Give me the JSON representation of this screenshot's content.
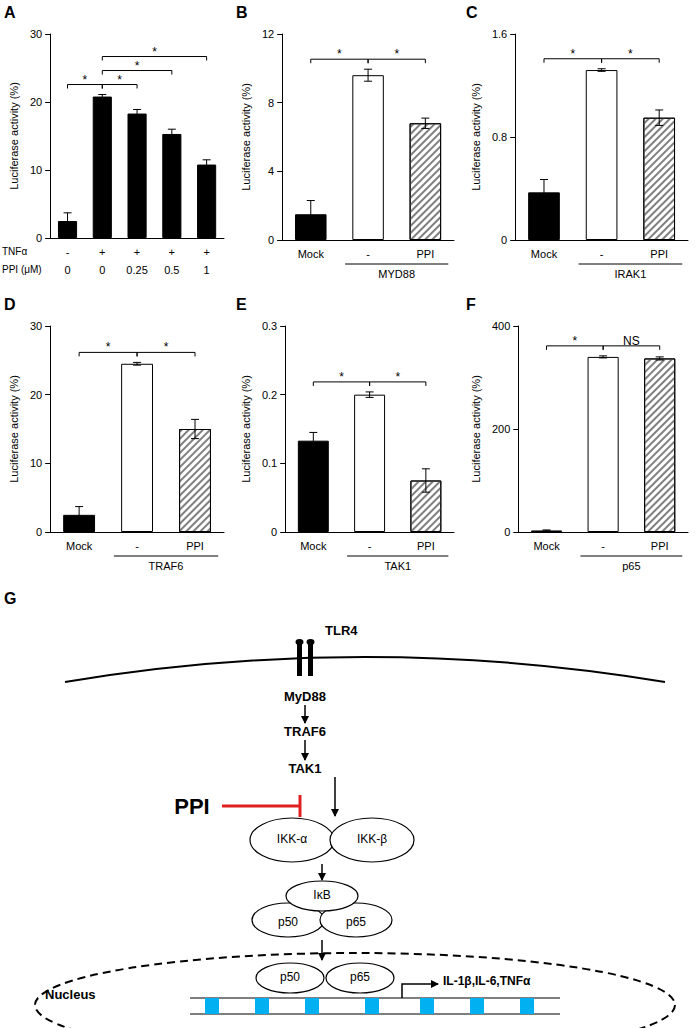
{
  "chart_data": [
    {
      "type": "bar",
      "label": "A",
      "y_label": "Luciferase activity (%)",
      "category_rows": [
        {
          "name": "TNFα",
          "categories": [
            "-",
            "+",
            "+",
            "+",
            "+"
          ]
        },
        {
          "name": "PPI (μM)",
          "categories": [
            "0",
            "0",
            "0.25",
            "0.5",
            "1"
          ]
        }
      ],
      "values": [
        2.5,
        20.8,
        18.3,
        15.3,
        10.8
      ],
      "errors": [
        1.2,
        0.3,
        0.6,
        0.7,
        0.7
      ],
      "colors": [
        "#000000",
        "#000000",
        "#000000",
        "#000000",
        "#000000"
      ],
      "ylim": [
        0,
        30
      ],
      "yticks": [
        0,
        10,
        20,
        30
      ],
      "grid": false,
      "significance": [
        {
          "from": 0,
          "to": 1,
          "label": "*"
        },
        {
          "from": 1,
          "to": 2,
          "label": "*"
        },
        {
          "from": 1,
          "to": 3,
          "label": "*"
        },
        {
          "from": 1,
          "to": 4,
          "label": "*"
        }
      ]
    },
    {
      "type": "bar",
      "label": "B",
      "y_label": "Luciferase activity (%)",
      "categories": [
        "Mock",
        "-",
        "PPI"
      ],
      "group": {
        "label": "MYD88",
        "from": 1,
        "to": 2
      },
      "values": [
        1.5,
        9.6,
        6.8
      ],
      "errors": [
        0.8,
        0.35,
        0.3
      ],
      "colors": [
        "#000000",
        "#ffffff",
        "#808080"
      ],
      "ylim": [
        0,
        12
      ],
      "yticks": [
        0,
        4,
        8,
        12
      ],
      "grid": false,
      "significance": [
        {
          "from": 0,
          "to": 1,
          "label": "*"
        },
        {
          "from": 1,
          "to": 2,
          "label": "*"
        }
      ]
    },
    {
      "type": "bar",
      "label": "C",
      "y_label": "Luciferase activity (%)",
      "categories": [
        "Mock",
        "-",
        "PPI"
      ],
      "group": {
        "label": "IRAK1",
        "from": 1,
        "to": 2
      },
      "values": [
        0.37,
        1.32,
        0.95
      ],
      "errors": [
        0.1,
        0.01,
        0.06
      ],
      "colors": [
        "#000000",
        "#ffffff",
        "#808080"
      ],
      "ylim": [
        0,
        1.6
      ],
      "yticks": [
        0,
        0.8,
        1.6
      ],
      "grid": false,
      "significance": [
        {
          "from": 0,
          "to": 1,
          "label": "*"
        },
        {
          "from": 1,
          "to": 2,
          "label": "*"
        }
      ]
    },
    {
      "type": "bar",
      "label": "D",
      "y_label": "Luciferase activity (%)",
      "categories": [
        "Mock",
        "-",
        "PPI"
      ],
      "group": {
        "label": "TRAF6",
        "from": 1,
        "to": 2
      },
      "values": [
        2.5,
        24.5,
        15.0
      ],
      "errors": [
        1.2,
        0.2,
        1.4
      ],
      "colors": [
        "#000000",
        "#ffffff",
        "#808080"
      ],
      "ylim": [
        0,
        30
      ],
      "yticks": [
        0,
        10,
        20,
        30
      ],
      "grid": false,
      "significance": [
        {
          "from": 0,
          "to": 1,
          "label": "*"
        },
        {
          "from": 1,
          "to": 2,
          "label": "*"
        }
      ]
    },
    {
      "type": "bar",
      "label": "E",
      "y_label": "Luciferase activity (%)",
      "categories": [
        "Mock",
        "-",
        "PPI"
      ],
      "group": {
        "label": "TAK1",
        "from": 1,
        "to": 2
      },
      "values": [
        0.133,
        0.2,
        0.075
      ],
      "errors": [
        0.012,
        0.004,
        0.017
      ],
      "colors": [
        "#000000",
        "#ffffff",
        "#808080"
      ],
      "ylim": [
        0,
        0.3
      ],
      "yticks": [
        0,
        0.1,
        0.2,
        0.3
      ],
      "grid": false,
      "significance": [
        {
          "from": 0,
          "to": 1,
          "label": "*"
        },
        {
          "from": 1,
          "to": 2,
          "label": "*"
        }
      ]
    },
    {
      "type": "bar",
      "label": "F",
      "y_label": "Luciferase activity (%)",
      "categories": [
        "Mock",
        "-",
        "PPI"
      ],
      "group": {
        "label": "p65",
        "from": 1,
        "to": 2
      },
      "values": [
        3,
        340,
        337
      ],
      "errors": [
        1,
        2,
        3
      ],
      "colors": [
        "#000000",
        "#ffffff",
        "#808080"
      ],
      "ylim": [
        0,
        400
      ],
      "yticks": [
        0,
        200,
        400
      ],
      "grid": false,
      "significance": [
        {
          "from": 0,
          "to": 1,
          "label": "*"
        },
        {
          "from": 1,
          "to": 2,
          "label": "NS"
        }
      ]
    }
  ],
  "diagram": {
    "label": "G",
    "receptor": "TLR4",
    "cascade": [
      "MyD88",
      "TRAF6",
      "TAK1"
    ],
    "inhibitor": "PPI",
    "ikk": [
      "IKK-α",
      "IKK-β"
    ],
    "complex": {
      "inhibitor": "IκB",
      "dimer": [
        "p50",
        "p65"
      ]
    },
    "nucleus": {
      "label": "Nucleus",
      "dimer": [
        "p50",
        "p65"
      ],
      "genes": "IL-1β,IL-6,TNFα"
    }
  }
}
